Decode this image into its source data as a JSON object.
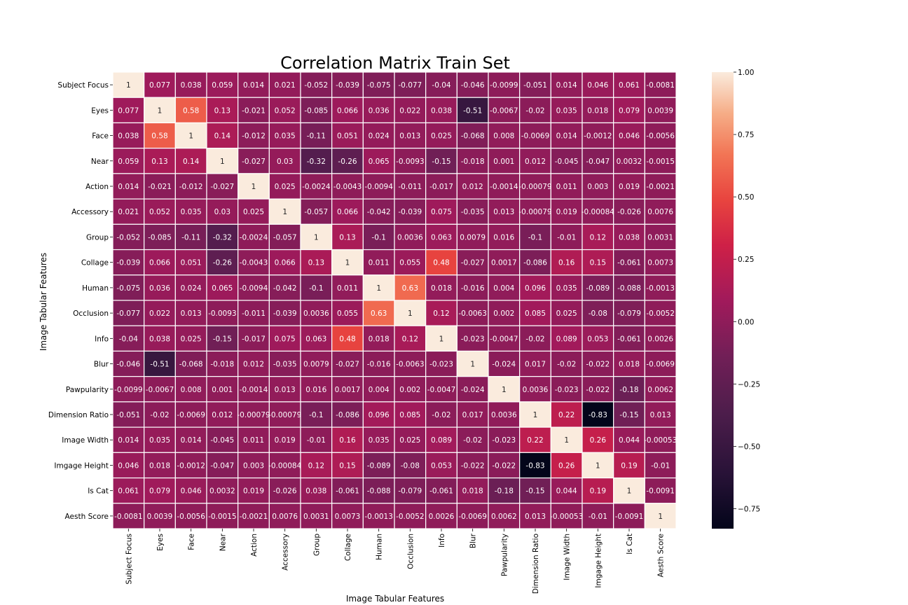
{
  "chart_data": {
    "type": "heatmap",
    "title": "Correlation Matrix Train Set",
    "xlabel": "Image Tabular Features",
    "ylabel": "Image Tabular Features",
    "labels": [
      "Subject Focus",
      "Eyes",
      "Face",
      "Near",
      "Action",
      "Accessory",
      "Group",
      "Collage",
      "Human",
      "Occlusion",
      "Info",
      "Blur",
      "Pawpularity",
      "Dimension Ratio",
      "Image Width",
      "Imgage Height",
      "Is Cat",
      "Aesth Score"
    ],
    "matrix": [
      [
        "1",
        "0.077",
        "0.038",
        "0.059",
        "0.014",
        "0.021",
        "-0.052",
        "-0.039",
        "-0.075",
        "-0.077",
        "-0.04",
        "-0.046",
        "-0.0099",
        "-0.051",
        "0.014",
        "0.046",
        "0.061",
        "-0.0081"
      ],
      [
        "0.077",
        "1",
        "0.58",
        "0.13",
        "-0.021",
        "0.052",
        "-0.085",
        "0.066",
        "0.036",
        "0.022",
        "0.038",
        "-0.51",
        "-0.0067",
        "-0.02",
        "0.035",
        "0.018",
        "0.079",
        "0.0039"
      ],
      [
        "0.038",
        "0.58",
        "1",
        "0.14",
        "-0.012",
        "0.035",
        "-0.11",
        "0.051",
        "0.024",
        "0.013",
        "0.025",
        "-0.068",
        "0.008",
        "-0.0069",
        "0.014",
        "-0.0012",
        "0.046",
        "-0.0056"
      ],
      [
        "0.059",
        "0.13",
        "0.14",
        "1",
        "-0.027",
        "0.03",
        "-0.32",
        "-0.26",
        "0.065",
        "-0.0093",
        "-0.15",
        "-0.018",
        "0.001",
        "0.012",
        "-0.045",
        "-0.047",
        "0.0032",
        "-0.0015"
      ],
      [
        "0.014",
        "-0.021",
        "-0.012",
        "-0.027",
        "1",
        "0.025",
        "-0.0024",
        "-0.0043",
        "-0.0094",
        "-0.011",
        "-0.017",
        "0.012",
        "-0.0014",
        "-0.00079",
        "0.011",
        "0.003",
        "0.019",
        "-0.0021"
      ],
      [
        "0.021",
        "0.052",
        "0.035",
        "0.03",
        "0.025",
        "1",
        "-0.057",
        "0.066",
        "-0.042",
        "-0.039",
        "0.075",
        "-0.035",
        "0.013",
        "-0.00079",
        "0.019",
        "-0.00084",
        "-0.026",
        "0.0076"
      ],
      [
        "-0.052",
        "-0.085",
        "-0.11",
        "-0.32",
        "-0.0024",
        "-0.057",
        "1",
        "0.13",
        "-0.1",
        "0.0036",
        "0.063",
        "0.0079",
        "0.016",
        "-0.1",
        "-0.01",
        "0.12",
        "0.038",
        "0.0031"
      ],
      [
        "-0.039",
        "0.066",
        "0.051",
        "-0.26",
        "-0.0043",
        "0.066",
        "0.13",
        "1",
        "0.011",
        "0.055",
        "0.48",
        "-0.027",
        "0.0017",
        "-0.086",
        "0.16",
        "0.15",
        "-0.061",
        "0.0073"
      ],
      [
        "-0.075",
        "0.036",
        "0.024",
        "0.065",
        "-0.0094",
        "-0.042",
        "-0.1",
        "0.011",
        "1",
        "0.63",
        "0.018",
        "-0.016",
        "0.004",
        "0.096",
        "0.035",
        "-0.089",
        "-0.088",
        "-0.0013"
      ],
      [
        "-0.077",
        "0.022",
        "0.013",
        "-0.0093",
        "-0.011",
        "-0.039",
        "0.0036",
        "0.055",
        "0.63",
        "1",
        "0.12",
        "-0.0063",
        "0.002",
        "0.085",
        "0.025",
        "-0.08",
        "-0.079",
        "-0.0052"
      ],
      [
        "-0.04",
        "0.038",
        "0.025",
        "-0.15",
        "-0.017",
        "0.075",
        "0.063",
        "0.48",
        "0.018",
        "0.12",
        "1",
        "-0.023",
        "-0.0047",
        "-0.02",
        "0.089",
        "0.053",
        "-0.061",
        "0.0026"
      ],
      [
        "-0.046",
        "-0.51",
        "-0.068",
        "-0.018",
        "0.012",
        "-0.035",
        "0.0079",
        "-0.027",
        "-0.016",
        "-0.0063",
        "-0.023",
        "1",
        "-0.024",
        "0.017",
        "-0.02",
        "-0.022",
        "0.018",
        "-0.0069"
      ],
      [
        "-0.0099",
        "-0.0067",
        "0.008",
        "0.001",
        "-0.0014",
        "0.013",
        "0.016",
        "0.0017",
        "0.004",
        "0.002",
        "-0.0047",
        "-0.024",
        "1",
        "0.0036",
        "-0.023",
        "-0.022",
        "-0.18",
        "0.0062"
      ],
      [
        "-0.051",
        "-0.02",
        "-0.0069",
        "0.012",
        "-0.00079",
        "-0.00079",
        "-0.1",
        "-0.086",
        "0.096",
        "0.085",
        "-0.02",
        "0.017",
        "0.0036",
        "1",
        "0.22",
        "-0.83",
        "-0.15",
        "0.013"
      ],
      [
        "0.014",
        "0.035",
        "0.014",
        "-0.045",
        "0.011",
        "0.019",
        "-0.01",
        "0.16",
        "0.035",
        "0.025",
        "0.089",
        "-0.02",
        "-0.023",
        "0.22",
        "1",
        "0.26",
        "0.044",
        "-0.00053"
      ],
      [
        "0.046",
        "0.018",
        "-0.0012",
        "-0.047",
        "0.003",
        "-0.00084",
        "0.12",
        "0.15",
        "-0.089",
        "-0.08",
        "0.053",
        "-0.022",
        "-0.022",
        "-0.83",
        "0.26",
        "1",
        "0.19",
        "-0.01"
      ],
      [
        "0.061",
        "0.079",
        "0.046",
        "0.0032",
        "0.019",
        "-0.026",
        "0.038",
        "-0.061",
        "-0.088",
        "-0.079",
        "-0.061",
        "0.018",
        "-0.18",
        "-0.15",
        "0.044",
        "0.19",
        "1",
        "-0.0091"
      ],
      [
        "-0.0081",
        "0.0039",
        "-0.0056",
        "-0.0015",
        "-0.0021",
        "0.0076",
        "0.0031",
        "0.0073",
        "-0.0013",
        "-0.0052",
        "0.0026",
        "-0.0069",
        "0.0062",
        "0.013",
        "-0.00053",
        "-0.01",
        "-0.0091",
        "1"
      ]
    ],
    "colorbar": {
      "vmin": -0.83,
      "vmax": 1.0,
      "ticks": [
        "1.00",
        "0.75",
        "0.50",
        "0.25",
        "0.00",
        "−0.25",
        "−0.50",
        "−0.75"
      ],
      "tick_values": [
        1.0,
        0.75,
        0.5,
        0.25,
        0.0,
        -0.25,
        -0.5,
        -0.75
      ]
    },
    "colormap": "rocket",
    "grid_lines": "white"
  }
}
